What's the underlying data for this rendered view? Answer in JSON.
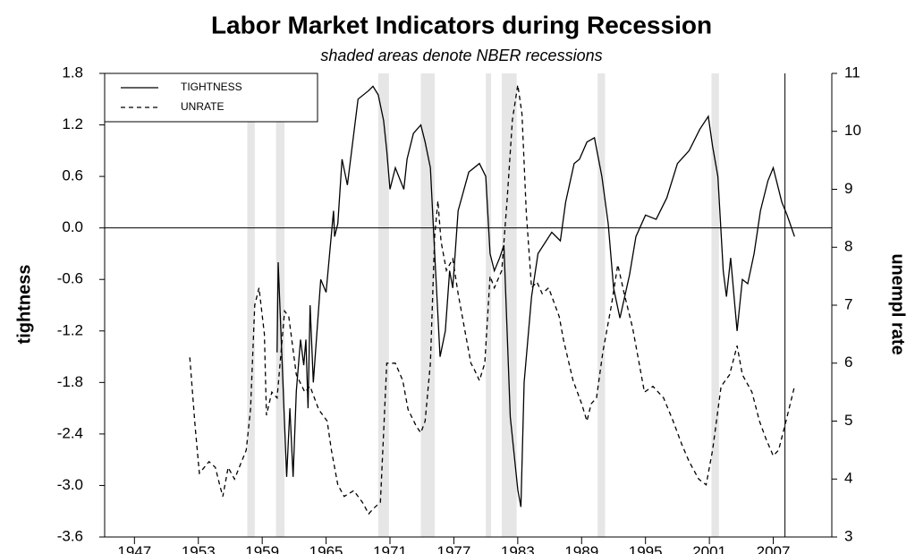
{
  "chart_data": {
    "type": "line",
    "title": "Labor Market Indicators during Recession",
    "subtitle": "shaded areas denote NBER recessions",
    "y_label": "tightness",
    "y2_label": "unempl rate",
    "xlim": [
      1944.2,
      2012.5
    ],
    "xticks": [
      1947,
      1953,
      1959,
      1965,
      1971,
      1977,
      1983,
      1989,
      1995,
      2001,
      2007
    ],
    "ylim": [
      -3.6,
      1.8
    ],
    "yticks": [
      -3.6,
      {
        "value": -3.0,
        "label": "-3.0"
      },
      -2.4,
      -1.8,
      -1.2,
      -0.6,
      {
        "value": 0,
        "label": "0.0"
      },
      0.6,
      1.2,
      1.8
    ],
    "y2lim": [
      3,
      11
    ],
    "y2ticks": [
      3,
      4,
      5,
      6,
      7,
      8,
      9,
      10,
      11
    ],
    "recessions": [
      [
        1957.6,
        1958.3
      ],
      [
        1960.3,
        1961.1
      ],
      [
        1969.9,
        1970.9
      ],
      [
        1973.9,
        1975.2
      ],
      [
        1980.0,
        1980.5
      ],
      [
        1981.5,
        1982.9
      ],
      [
        1990.5,
        1991.2
      ],
      [
        2001.2,
        2001.9
      ]
    ],
    "recession_color": "#e6e6e6",
    "vertical_line": 2008.1,
    "legend": "upper left",
    "series": [
      {
        "name": "TIGHTNESS",
        "color": "#000000",
        "dash": false,
        "x": [
          1960.4,
          1960.5,
          1961.3,
          1961.6,
          1961.9,
          1962.2,
          1962.6,
          1962.9,
          1963.1,
          1963.3,
          1963.5,
          1963.8,
          1964.5,
          1965.0,
          1965.7,
          1965.8,
          1966.1,
          1966.5,
          1967.0,
          1968.0,
          1969.0,
          1969.4,
          1969.9,
          1970.4,
          1970.7,
          1971.0,
          1971.5,
          1972.3,
          1972.6,
          1973.2,
          1973.9,
          1974.3,
          1974.8,
          1975.2,
          1975.7,
          1976.2,
          1976.6,
          1976.9,
          1977.4,
          1978.4,
          1979.4,
          1980.0,
          1980.4,
          1980.8,
          1981.3,
          1981.7,
          1982.3,
          1983.0,
          1983.3,
          1983.6,
          1984.3,
          1984.9,
          1986.2,
          1987.0,
          1987.5,
          1988.3,
          1988.8,
          1989.5,
          1990.2,
          1990.9,
          1991.5,
          1992.0,
          1992.6,
          1993.5,
          1994.1,
          1995.0,
          1996.0,
          1997.0,
          1998.0,
          1999.1,
          2000.1,
          2000.9,
          2001.3,
          2001.8,
          2002.3,
          2002.6,
          2003.0,
          2003.6,
          2004.1,
          2004.6,
          2005.2,
          2005.8,
          2006.5,
          2007.0,
          2007.8,
          2008.3,
          2009.0
        ],
        "values": [
          -1.45,
          -0.4,
          -2.9,
          -2.1,
          -2.9,
          -1.9,
          -1.3,
          -1.6,
          -1.3,
          -2.1,
          -0.9,
          -1.8,
          -0.6,
          -0.75,
          0.2,
          -0.1,
          0.05,
          0.8,
          0.5,
          1.5,
          1.6,
          1.65,
          1.55,
          1.25,
          0.9,
          0.45,
          0.7,
          0.45,
          0.8,
          1.1,
          1.2,
          1.0,
          0.7,
          -0.3,
          -1.5,
          -1.2,
          -0.5,
          -0.7,
          0.2,
          0.65,
          0.75,
          0.6,
          -0.3,
          -0.5,
          -0.35,
          -0.2,
          -2.2,
          -3.05,
          -3.25,
          -1.8,
          -0.8,
          -0.3,
          -0.05,
          -0.15,
          0.3,
          0.75,
          0.8,
          1.0,
          1.05,
          0.6,
          0.05,
          -0.7,
          -1.05,
          -0.55,
          -0.1,
          0.15,
          0.1,
          0.35,
          0.75,
          0.9,
          1.15,
          1.3,
          0.95,
          0.6,
          -0.5,
          -0.8,
          -0.35,
          -1.2,
          -0.6,
          -0.65,
          -0.3,
          0.2,
          0.55,
          0.7,
          0.3,
          0.15,
          -0.1
        ]
      },
      {
        "name": "UNRATE",
        "color": "#000000",
        "dash": true,
        "axis": "y2",
        "x": [
          1952.2,
          1952.7,
          1953.1,
          1954.0,
          1954.6,
          1955.0,
          1955.3,
          1955.8,
          1956.4,
          1957.5,
          1957.9,
          1958.3,
          1958.7,
          1959.2,
          1959.4,
          1959.9,
          1960.4,
          1961.1,
          1961.5,
          1962.2,
          1963.0,
          1963.5,
          1964.3,
          1965.1,
          1965.5,
          1966.1,
          1966.7,
          1967.6,
          1968.4,
          1969.0,
          1969.5,
          1970.1,
          1970.4,
          1970.7,
          1971.5,
          1972.2,
          1972.7,
          1973.5,
          1973.9,
          1974.3,
          1974.8,
          1975.2,
          1975.5,
          1975.8,
          1976.3,
          1976.9,
          1977.4,
          1978.1,
          1978.6,
          1978.9,
          1979.4,
          1979.9,
          1980.4,
          1980.8,
          1981.5,
          1982.0,
          1982.5,
          1983.0,
          1983.4,
          1983.8,
          1984.3,
          1984.8,
          1985.3,
          1985.9,
          1986.9,
          1987.3,
          1988.2,
          1989.0,
          1989.5,
          1989.9,
          1990.4,
          1991.0,
          1991.8,
          1992.4,
          1993.0,
          1993.8,
          1994.9,
          1995.7,
          1996.7,
          1997.6,
          1998.4,
          1999.1,
          2000.0,
          2000.7,
          2001.3,
          2002.1,
          2002.9,
          2003.6,
          2004.1,
          2005.0,
          2005.7,
          2006.3,
          2007.0,
          2007.5,
          2008.2,
          2009.0
        ],
        "values": [
          6.1,
          4.9,
          4.1,
          4.3,
          4.2,
          3.9,
          3.7,
          4.2,
          4.0,
          4.5,
          5.2,
          7.0,
          7.3,
          6.5,
          5.1,
          5.5,
          5.4,
          6.9,
          6.8,
          5.8,
          5.5,
          5.6,
          5.2,
          5.0,
          4.5,
          3.9,
          3.7,
          3.8,
          3.6,
          3.4,
          3.5,
          3.6,
          4.8,
          6.0,
          6.0,
          5.7,
          5.2,
          4.9,
          4.8,
          5.0,
          6.0,
          8.2,
          8.8,
          8.1,
          7.6,
          7.8,
          7.2,
          6.5,
          6.0,
          5.9,
          5.7,
          6.0,
          7.5,
          7.3,
          7.6,
          8.8,
          10.2,
          10.8,
          10.3,
          8.6,
          7.3,
          7.4,
          7.2,
          7.3,
          6.8,
          6.4,
          5.7,
          5.3,
          5.0,
          5.3,
          5.4,
          6.2,
          7.0,
          7.7,
          7.2,
          6.6,
          5.5,
          5.6,
          5.4,
          5.0,
          4.6,
          4.3,
          4.0,
          3.9,
          4.5,
          5.6,
          5.8,
          6.3,
          5.8,
          5.5,
          5.0,
          4.7,
          4.4,
          4.5,
          5.0,
          5.6
        ]
      }
    ]
  }
}
